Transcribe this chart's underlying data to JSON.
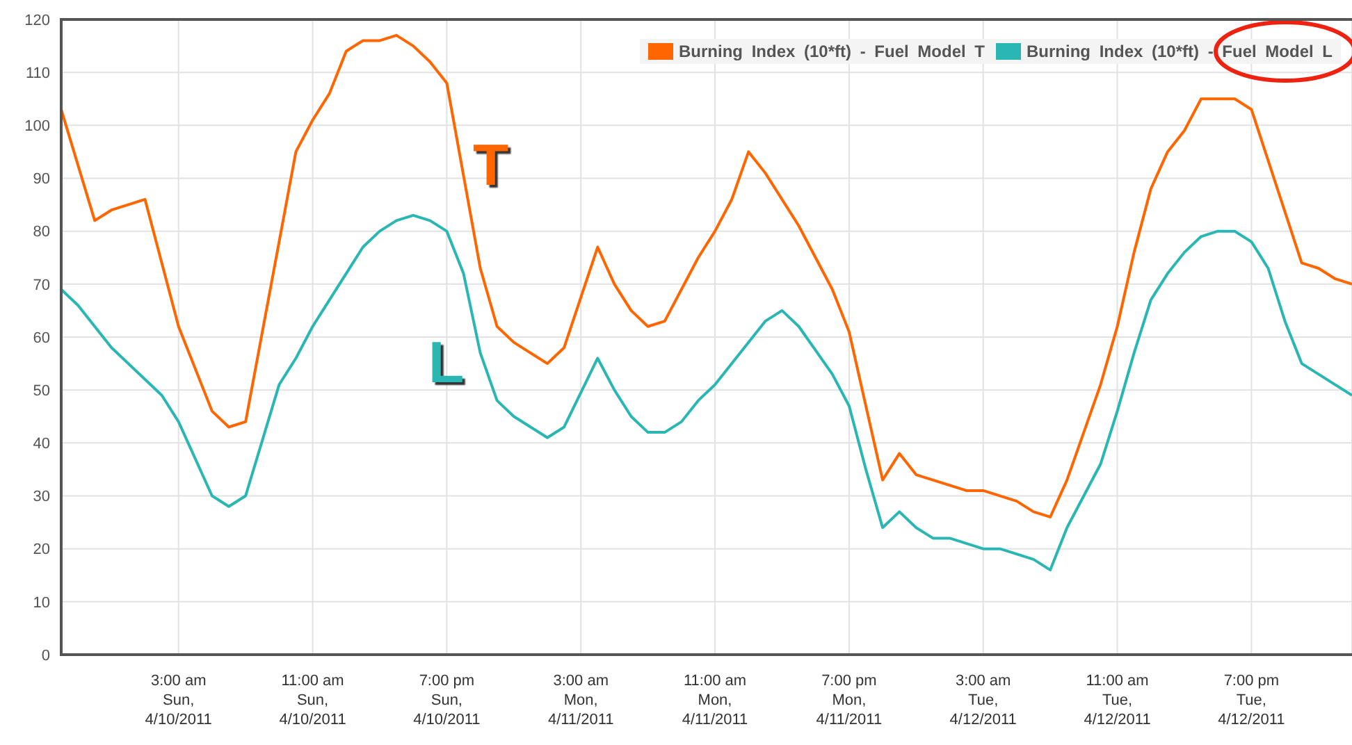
{
  "chart_data": {
    "type": "line",
    "series": [
      {
        "name": "Burning Index (10*ft) - Fuel Model T",
        "color": "#ff6600",
        "x": [
          "2011-04-09T20:00",
          "2011-04-09T22:00",
          "2011-04-09T23:00",
          "2011-04-10T01:00",
          "2011-04-10T03:00",
          "2011-04-10T05:00",
          "2011-04-10T06:00",
          "2011-04-10T07:00",
          "2011-04-10T10:00",
          "2011-04-10T11:00",
          "2011-04-10T12:00",
          "2011-04-10T13:00",
          "2011-04-10T14:00",
          "2011-04-10T15:00",
          "2011-04-10T16:00",
          "2011-04-10T17:00",
          "2011-04-10T18:00",
          "2011-04-10T19:00",
          "2011-04-10T21:00",
          "2011-04-10T22:00",
          "2011-04-10T23:00",
          "2011-04-11T01:00",
          "2011-04-11T02:00",
          "2011-04-11T04:00",
          "2011-04-11T05:00",
          "2011-04-11T06:00",
          "2011-04-11T07:00",
          "2011-04-11T08:00",
          "2011-04-11T10:00",
          "2011-04-11T11:00",
          "2011-04-11T12:00",
          "2011-04-11T13:00",
          "2011-04-11T14:00",
          "2011-04-11T16:00",
          "2011-04-11T18:00",
          "2011-04-11T19:00",
          "2011-04-11T21:00",
          "2011-04-11T22:00",
          "2011-04-11T23:00",
          "2011-04-12T02:00",
          "2011-04-12T03:00",
          "2011-04-12T05:00",
          "2011-04-12T06:00",
          "2011-04-12T07:00",
          "2011-04-12T08:00",
          "2011-04-12T10:00",
          "2011-04-12T11:00",
          "2011-04-12T12:00",
          "2011-04-12T13:00",
          "2011-04-12T14:00",
          "2011-04-12T15:00",
          "2011-04-12T16:00",
          "2011-04-12T18:00",
          "2011-04-12T19:00",
          "2011-04-12T22:00",
          "2011-04-12T23:00",
          "2011-04-13T00:00",
          "2011-04-13T01:00"
        ],
        "values": [
          103,
          82,
          84,
          86,
          62,
          46,
          43,
          44,
          95,
          101,
          106,
          114,
          116,
          116,
          117,
          115,
          112,
          108,
          73,
          62,
          59,
          55,
          58,
          77,
          70,
          65,
          62,
          63,
          75,
          80,
          86,
          95,
          91,
          81,
          69,
          61,
          33,
          38,
          34,
          31,
          31,
          29,
          27,
          26,
          33,
          51,
          62,
          76,
          88,
          95,
          99,
          105,
          105,
          103,
          74,
          73,
          71,
          70
        ]
      },
      {
        "name": "Burning Index (10*ft) - Fuel Model L",
        "color": "#2ab7b3",
        "x": [
          "2011-04-09T20:00",
          "2011-04-09T21:00",
          "2011-04-09T23:00",
          "2011-04-10T02:00",
          "2011-04-10T03:00",
          "2011-04-10T05:00",
          "2011-04-10T06:00",
          "2011-04-10T07:00",
          "2011-04-10T09:00",
          "2011-04-10T10:00",
          "2011-04-10T11:00",
          "2011-04-10T12:00",
          "2011-04-10T13:00",
          "2011-04-10T14:00",
          "2011-04-10T15:00",
          "2011-04-10T16:00",
          "2011-04-10T17:00",
          "2011-04-10T18:00",
          "2011-04-10T19:00",
          "2011-04-10T20:00",
          "2011-04-10T21:00",
          "2011-04-10T22:00",
          "2011-04-10T23:00",
          "2011-04-11T00:00",
          "2011-04-11T01:00",
          "2011-04-11T02:00",
          "2011-04-11T04:00",
          "2011-04-11T05:00",
          "2011-04-11T06:00",
          "2011-04-11T07:00",
          "2011-04-11T08:00",
          "2011-04-11T09:00",
          "2011-04-11T10:00",
          "2011-04-11T11:00",
          "2011-04-11T14:00",
          "2011-04-11T15:00",
          "2011-04-11T16:00",
          "2011-04-11T18:00",
          "2011-04-11T19:00",
          "2011-04-11T20:00",
          "2011-04-11T21:00",
          "2011-04-11T22:00",
          "2011-04-11T23:00",
          "2011-04-12T00:00",
          "2011-04-12T01:00",
          "2011-04-12T03:00",
          "2011-04-12T04:00",
          "2011-04-12T06:00",
          "2011-04-12T07:00",
          "2011-04-12T08:00",
          "2011-04-12T10:00",
          "2011-04-12T11:00",
          "2011-04-12T12:00",
          "2011-04-12T13:00",
          "2011-04-12T14:00",
          "2011-04-12T15:00",
          "2011-04-12T16:00",
          "2011-04-12T17:00",
          "2011-04-12T18:00",
          "2011-04-12T19:00",
          "2011-04-12T20:00",
          "2011-04-12T21:00",
          "2011-04-12T22:00",
          "2011-04-13T01:00"
        ],
        "values": [
          69,
          66,
          58,
          49,
          44,
          30,
          28,
          30,
          51,
          56,
          62,
          67,
          72,
          77,
          80,
          82,
          83,
          82,
          80,
          72,
          57,
          48,
          45,
          43,
          41,
          43,
          56,
          50,
          45,
          42,
          42,
          44,
          48,
          51,
          63,
          65,
          62,
          53,
          47,
          35,
          24,
          27,
          24,
          22,
          22,
          20,
          20,
          18,
          16,
          24,
          36,
          46,
          57,
          67,
          72,
          76,
          79,
          80,
          80,
          78,
          73,
          63,
          55,
          49
        ]
      }
    ],
    "xlim": [
      "2011-04-09T20:00",
      "2011-04-13T01:00"
    ],
    "xticks": [
      {
        "value": "2011-04-10T03:00",
        "label": "3:00 am\nSun,\n4/10/2011"
      },
      {
        "value": "2011-04-10T11:00",
        "label": "11:00 am\nSun,\n4/10/2011"
      },
      {
        "value": "2011-04-10T19:00",
        "label": "7:00 pm\nSun,\n4/10/2011"
      },
      {
        "value": "2011-04-11T03:00",
        "label": "3:00 am\nMon,\n4/11/2011"
      },
      {
        "value": "2011-04-11T11:00",
        "label": "11:00 am\nMon,\n4/11/2011"
      },
      {
        "value": "2011-04-11T19:00",
        "label": "7:00 pm\nMon,\n4/11/2011"
      },
      {
        "value": "2011-04-12T03:00",
        "label": "3:00 am\nTue,\n4/12/2011"
      },
      {
        "value": "2011-04-12T11:00",
        "label": "11:00 am\nTue,\n4/12/2011"
      },
      {
        "value": "2011-04-12T19:00",
        "label": "7:00 pm\nTue,\n4/12/2011"
      }
    ],
    "ylim": [
      0,
      120
    ],
    "yticks": [
      0,
      10,
      20,
      30,
      40,
      50,
      60,
      70,
      80,
      90,
      100,
      110,
      120
    ],
    "annotations": [
      "T",
      "L"
    ],
    "grid": true,
    "legend": "top right",
    "marker": "none",
    "line_style": "solid"
  }
}
